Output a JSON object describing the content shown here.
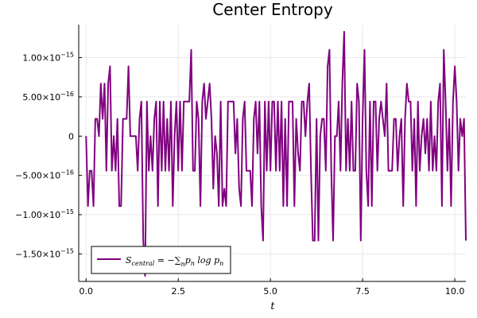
{
  "chart_data": {
    "type": "line",
    "title": "Center Entropy",
    "xlabel": "t",
    "ylabel": "",
    "xlim": [
      -0.2,
      10.3
    ],
    "ylim": [
      -1.85e-15,
      1.42e-15
    ],
    "x_ticks": [
      0,
      2.5,
      5,
      7.5,
      10
    ],
    "x_tick_labels": [
      "0.0",
      "2.5",
      "5.0",
      "7.5",
      "10.0"
    ],
    "y_ticks": [
      -1.5e-15,
      -1e-15,
      -5e-16,
      0,
      5e-16,
      1e-15
    ],
    "y_tick_labels": [
      {
        "mant": "−1.50×10",
        "exp": "−15"
      },
      {
        "mant": "−1.00×10",
        "exp": "−15"
      },
      {
        "mant": "−5.00×10",
        "exp": "−16"
      },
      {
        "mant": "0",
        "exp": ""
      },
      {
        "mant": "5.00×10",
        "exp": "−16"
      },
      {
        "mant": "1.00×10",
        "exp": "−15"
      }
    ],
    "grid": true,
    "legend_position": "bottom-left",
    "series": [
      {
        "name": "S_central = −∑_n p_n log p_n",
        "color": "#800080",
        "x_start": 0,
        "x_step": 0.05,
        "values": [
          0,
          -8.9e-16,
          -4.4e-16,
          -4.4e-16,
          -8.9e-16,
          2.2e-16,
          2.2e-16,
          0,
          6.7e-16,
          2.2e-16,
          6.7e-16,
          -4.4e-16,
          6.7e-16,
          8.9e-16,
          -4.4e-16,
          0,
          -4.4e-16,
          2.2e-16,
          -8.9e-16,
          -8.9e-16,
          2.2e-16,
          2.2e-16,
          2.2e-16,
          8.9e-16,
          0,
          0,
          0,
          0,
          -4.4e-16,
          2.2e-16,
          4.4e-16,
          -1.33e-15,
          -1.78e-15,
          4.4e-16,
          -4.4e-16,
          0,
          -4.4e-16,
          2.2e-16,
          4.4e-16,
          -8.9e-16,
          4.4e-16,
          -4.4e-16,
          4.4e-16,
          -4.4e-16,
          2.2e-16,
          -4.4e-16,
          4.4e-16,
          -8.9e-16,
          0,
          4.4e-16,
          -4.4e-16,
          4.4e-16,
          -4.4e-16,
          4.4e-16,
          4.4e-16,
          4.4e-16,
          4.4e-16,
          1.1e-15,
          -4.4e-16,
          -4.4e-16,
          4.4e-16,
          2.2e-16,
          -8.9e-16,
          4.4e-16,
          6.7e-16,
          2.2e-16,
          4.4e-16,
          6.7e-16,
          2.2e-16,
          -6.7e-16,
          0,
          -2.2e-16,
          -8.9e-16,
          4.4e-16,
          -8.9e-16,
          -6.7e-16,
          -8.9e-16,
          4.4e-16,
          4.4e-16,
          4.4e-16,
          4.4e-16,
          -2.2e-16,
          2.2e-16,
          -6.7e-16,
          -8.9e-16,
          2.2e-16,
          4.4e-16,
          -4.4e-16,
          -4.4e-16,
          -4.4e-16,
          -8.9e-16,
          2.2e-16,
          4.4e-16,
          -2.2e-16,
          4.4e-16,
          -8.9e-16,
          -1.33e-15,
          4.4e-16,
          -4.4e-16,
          4.4e-16,
          -4.4e-16,
          4.4e-16,
          4.4e-16,
          -4.4e-16,
          4.4e-16,
          -4.4e-16,
          4.4e-16,
          -8.9e-16,
          2.2e-16,
          -8.9e-16,
          4.4e-16,
          4.4e-16,
          4.4e-16,
          -8.9e-16,
          2.2e-16,
          -2.2e-16,
          -4.4e-16,
          4.4e-16,
          4.4e-16,
          0,
          4.4e-16,
          6.7e-16,
          -4.4e-16,
          -1.33e-15,
          -1.33e-15,
          2.2e-16,
          -1.33e-15,
          0,
          2.2e-16,
          2.2e-16,
          -4.4e-16,
          8.9e-16,
          1.1e-15,
          -4.4e-16,
          -1.33e-15,
          0,
          0,
          4.4e-16,
          -4.4e-16,
          6.7e-16,
          1.33e-15,
          -4.4e-16,
          2.2e-16,
          -4.4e-16,
          4.4e-16,
          -4.4e-16,
          -4.4e-16,
          6.7e-16,
          4.4e-16,
          -1.33e-15,
          2.2e-16,
          1.1e-15,
          -4.4e-16,
          -8.9e-16,
          4.4e-16,
          -8.9e-16,
          4.4e-16,
          4.4e-16,
          -4.4e-16,
          2.2e-16,
          4.4e-16,
          2.2e-16,
          0,
          6.7e-16,
          -4.4e-16,
          -4.4e-16,
          -4.4e-16,
          2.2e-16,
          2.2e-16,
          -4.4e-16,
          0,
          2.2e-16,
          -8.9e-16,
          2.2e-16,
          6.7e-16,
          4.4e-16,
          4.4e-16,
          -4.4e-16,
          2.2e-16,
          -8.9e-16,
          4.4e-16,
          -4.4e-16,
          0,
          2.2e-16,
          -2.2e-16,
          2.2e-16,
          -4.4e-16,
          4.4e-16,
          -4.4e-16,
          0,
          -4.4e-16,
          4.4e-16,
          6.7e-16,
          -8.9e-16,
          1.1e-15,
          4.4e-16,
          -4.4e-16,
          2.2e-16,
          -8.9e-16,
          4.4e-16,
          8.9e-16,
          4.4e-16,
          -4.4e-16,
          2.2e-16,
          0,
          2.2e-16,
          -1.33e-15
        ]
      }
    ]
  }
}
